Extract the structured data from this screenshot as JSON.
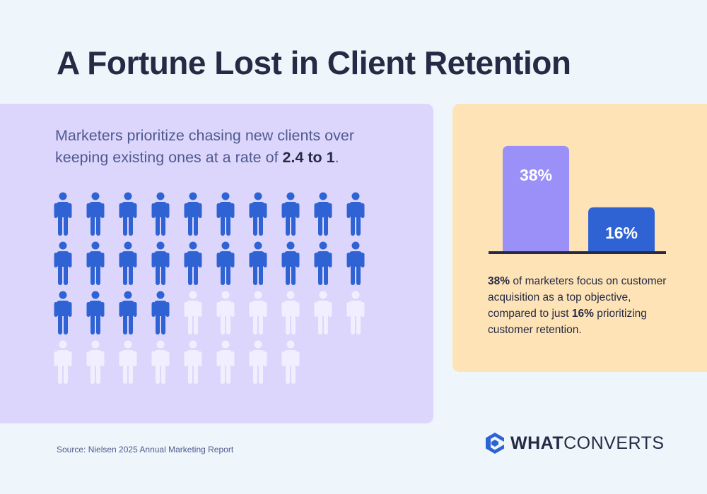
{
  "title": "A Fortune Lost in Client Retention",
  "left": {
    "lead_text": "Marketers prioritize chasing new clients over keeping existing ones at a rate of ",
    "lead_ratio": "2.4 to 1",
    "lead_end": ".",
    "pictogram": {
      "filled": 24,
      "total": 38,
      "per_row": 10
    }
  },
  "chart_data": {
    "type": "bar",
    "categories": [
      "Customer acquisition",
      "Customer retention"
    ],
    "values": [
      38,
      16
    ],
    "data_labels": [
      "38%",
      "16%"
    ],
    "colors": [
      "#9b8ff8",
      "#2f63d4"
    ],
    "ylim": [
      0,
      40
    ]
  },
  "right": {
    "caption_b1": "38%",
    "caption_t1": " of marketers focus on customer acquisition as a top objective, compared to just ",
    "caption_b2": "16%",
    "caption_t2": " prioritizing customer retention."
  },
  "source": "Source: Nielsen 2025 Annual Marketing Report",
  "logo": {
    "bold": "WHAT",
    "light": "CONVERTS"
  },
  "colors": {
    "filled_person": "#2f63d4",
    "empty_person": "#f1efff",
    "dark": "#262a45"
  }
}
